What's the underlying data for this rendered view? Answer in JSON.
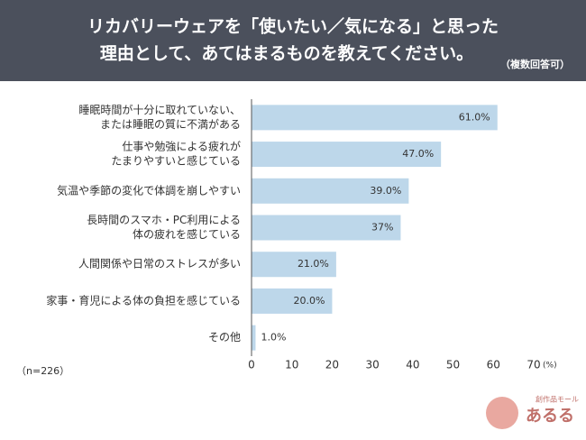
{
  "chart_data": {
    "type": "hbar",
    "title": [
      "リカバリーウェアを「使いたい／気になる」と思った",
      "理由として、あてはまるものを教えてください。"
    ],
    "subtitle": "（複数回答可）",
    "categories": [
      [
        "睡眠時間が十分に取れていない、",
        "または睡眠の質に不満がある"
      ],
      [
        "仕事や勉強による疲れが",
        "たまりやすいと感じている"
      ],
      [
        "気温や季節の変化で体調を崩しやすい"
      ],
      [
        "長時間のスマホ・PC利用による",
        "体の疲れを感じている"
      ],
      [
        "人間関係や日常のストレスが多い"
      ],
      [
        "家事・育児による体の負担を感じている"
      ],
      [
        "その他"
      ]
    ],
    "values": [
      61,
      47,
      39,
      37,
      21,
      20,
      1
    ],
    "value_labels": [
      "61.0%",
      "47.0%",
      "39.0%",
      "37%",
      "21.0%",
      "20.0%",
      "1.0%"
    ],
    "color": "#bdd7ea",
    "xlim": [
      0,
      70
    ],
    "xticks": [
      0,
      10,
      20,
      30,
      40,
      50,
      60,
      70
    ],
    "unit_label": "(%)",
    "note": "（n=226）",
    "grid": false
  },
  "logo": {
    "tagline": "創作品モール",
    "name": "あるる"
  }
}
